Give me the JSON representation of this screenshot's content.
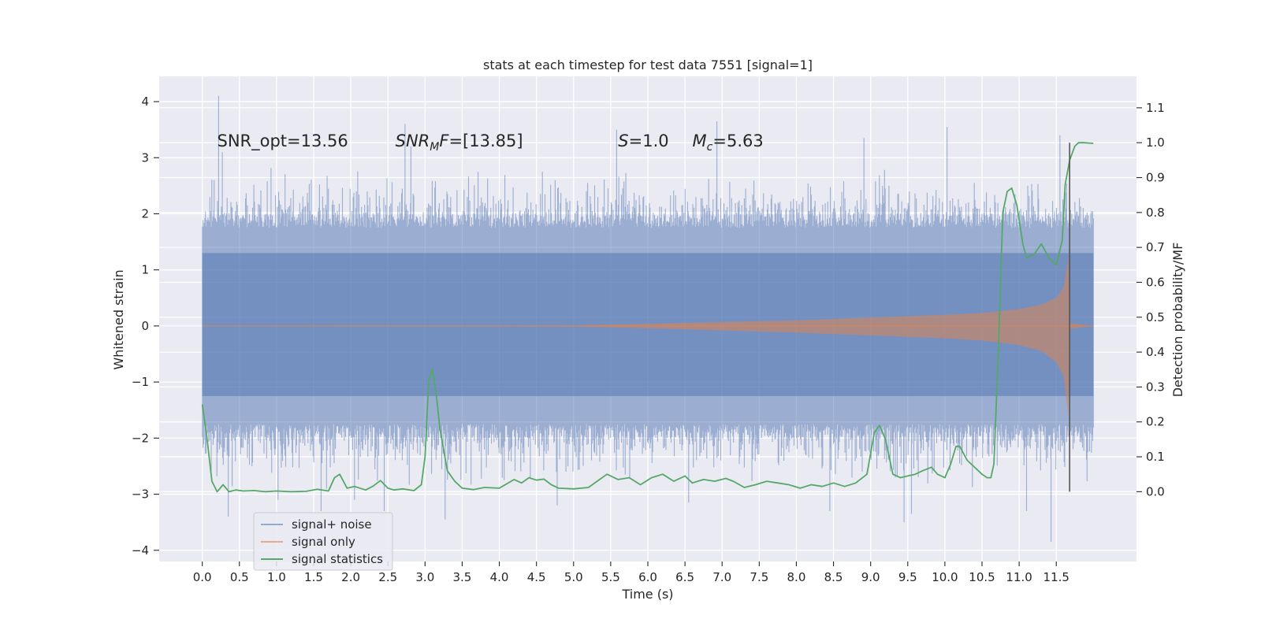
{
  "chart_data": {
    "type": "line",
    "title": "stats at each timestep for test data 7551 [signal=1]",
    "xlabel": "Time (s)",
    "ylabel": "Whitened strain",
    "y2label": "Detection probability/MF",
    "xlim": [
      -0.58,
      12.58
    ],
    "ylim": [
      -4.2,
      4.45
    ],
    "y2lim": [
      -0.2,
      1.19
    ],
    "xticks": [
      0.0,
      0.5,
      1.0,
      1.5,
      2.0,
      2.5,
      3.0,
      3.5,
      4.0,
      4.5,
      5.0,
      5.5,
      6.0,
      6.5,
      7.0,
      7.5,
      8.0,
      8.5,
      9.0,
      9.5,
      10.0,
      10.5,
      11.0,
      11.5
    ],
    "yticks": [
      -4,
      -3,
      -2,
      -1,
      0,
      1,
      2,
      3,
      4
    ],
    "y2ticks": [
      0.0,
      0.1,
      0.2,
      0.3,
      0.4,
      0.5,
      0.6,
      0.7,
      0.8,
      0.9,
      1.0,
      1.1
    ],
    "grid": true,
    "legend_position": "lower-left",
    "colors": {
      "background": "#eaeaf2",
      "noise": "#4c72b0",
      "signal": "#dd8452",
      "stats": "#55a868",
      "marker": "#555555"
    },
    "annotations": [
      {
        "parts": [
          {
            "t": "SNR_opt=13.56",
            "i": false
          }
        ],
        "x": 0.2
      },
      {
        "parts": [
          {
            "t": "SNR",
            "i": true
          },
          {
            "t": "M",
            "i": true,
            "sub": true
          },
          {
            "t": "F",
            "i": true
          },
          {
            "t": "=[13.85]",
            "i": false
          }
        ],
        "x": 2.6
      },
      {
        "parts": [
          {
            "t": "S",
            "i": true
          },
          {
            "t": "=1.0",
            "i": false
          }
        ],
        "x": 5.6
      },
      {
        "parts": [
          {
            "t": "M",
            "i": true
          },
          {
            "t": "c",
            "i": true,
            "sub": true
          },
          {
            "t": "=5.63",
            "i": false
          }
        ],
        "x": 6.6
      }
    ],
    "annotation_y": 3.2,
    "marker_time": 11.68,
    "noise": {
      "t_start": 0.0,
      "t_end": 12.0,
      "band": [
        -1.25,
        1.3
      ],
      "max_upper": 4.1,
      "min_lower": -3.85,
      "peaks": [
        {
          "t": 0.22,
          "v": 4.1
        },
        {
          "t": 0.27,
          "v": 3.1
        },
        {
          "t": 0.16,
          "v": 2.6
        },
        {
          "t": 0.35,
          "v": -3.4
        },
        {
          "t": 1.02,
          "v": -3.1
        },
        {
          "t": 1.6,
          "v": -3.3
        },
        {
          "t": 2.05,
          "v": -3.1
        },
        {
          "t": 2.73,
          "v": 3.6
        },
        {
          "t": 2.81,
          "v": 3.2
        },
        {
          "t": 2.45,
          "v": -3.3
        },
        {
          "t": 3.27,
          "v": -3.45
        },
        {
          "t": 4.78,
          "v": -3.2
        },
        {
          "t": 5.58,
          "v": 3.5
        },
        {
          "t": 6.55,
          "v": -3.15
        },
        {
          "t": 6.93,
          "v": 3.65
        },
        {
          "t": 8.45,
          "v": -3.3
        },
        {
          "t": 8.91,
          "v": 3.35
        },
        {
          "t": 9.45,
          "v": -3.5
        },
        {
          "t": 9.55,
          "v": -3.35
        },
        {
          "t": 10.03,
          "v": 3.55
        },
        {
          "t": 11.43,
          "v": -3.85
        },
        {
          "t": 11.1,
          "v": -3.3
        },
        {
          "t": 11.55,
          "v": 3.4
        }
      ]
    },
    "signal": {
      "t_start": 0.0,
      "t_end": 12.0,
      "envelope": [
        {
          "t": 0.0,
          "upper": 0.0,
          "lower": 0.0
        },
        {
          "t": 4.0,
          "upper": 0.005,
          "lower": -0.005
        },
        {
          "t": 5.0,
          "upper": 0.01,
          "lower": -0.01
        },
        {
          "t": 6.0,
          "upper": 0.04,
          "lower": -0.04
        },
        {
          "t": 7.0,
          "upper": 0.07,
          "lower": -0.08
        },
        {
          "t": 8.0,
          "upper": 0.1,
          "lower": -0.12
        },
        {
          "t": 9.0,
          "upper": 0.15,
          "lower": -0.17
        },
        {
          "t": 10.0,
          "upper": 0.2,
          "lower": -0.22
        },
        {
          "t": 10.5,
          "upper": 0.23,
          "lower": -0.26
        },
        {
          "t": 11.0,
          "upper": 0.3,
          "lower": -0.34
        },
        {
          "t": 11.3,
          "upper": 0.38,
          "lower": -0.45
        },
        {
          "t": 11.5,
          "upper": 0.5,
          "lower": -0.65
        },
        {
          "t": 11.6,
          "upper": 0.7,
          "lower": -0.9
        },
        {
          "t": 11.66,
          "upper": 1.25,
          "lower": -1.6
        },
        {
          "t": 11.68,
          "upper": 0.05,
          "lower": -0.05
        },
        {
          "t": 12.0,
          "upper": 0.0,
          "lower": 0.0
        }
      ]
    },
    "series": [
      {
        "name": "signal statistics",
        "axis": "right",
        "x": [
          0.0,
          0.06,
          0.13,
          0.2,
          0.28,
          0.36,
          0.45,
          0.55,
          0.7,
          0.85,
          1.0,
          1.2,
          1.4,
          1.55,
          1.7,
          1.78,
          1.85,
          1.95,
          2.05,
          2.2,
          2.3,
          2.4,
          2.5,
          2.58,
          2.7,
          2.85,
          2.95,
          3.0,
          3.05,
          3.1,
          3.15,
          3.2,
          3.3,
          3.4,
          3.5,
          3.65,
          3.8,
          4.0,
          4.2,
          4.3,
          4.4,
          4.5,
          4.6,
          4.7,
          4.8,
          5.0,
          5.2,
          5.35,
          5.45,
          5.6,
          5.75,
          5.9,
          6.05,
          6.2,
          6.35,
          6.5,
          6.6,
          6.75,
          6.9,
          7.05,
          7.15,
          7.3,
          7.45,
          7.6,
          7.75,
          7.9,
          8.05,
          8.2,
          8.35,
          8.5,
          8.65,
          8.8,
          8.95,
          9.05,
          9.12,
          9.2,
          9.3,
          9.4,
          9.5,
          9.6,
          9.7,
          9.82,
          9.9,
          10.0,
          10.08,
          10.15,
          10.2,
          10.3,
          10.4,
          10.5,
          10.57,
          10.62,
          10.66,
          10.72,
          10.78,
          10.84,
          10.9,
          10.97,
          11.05,
          11.1,
          11.2,
          11.3,
          11.4,
          11.5,
          11.58,
          11.62,
          11.68,
          11.75,
          11.8,
          11.87,
          11.93,
          12.0
        ],
        "values": [
          0.25,
          0.16,
          0.03,
          0.0,
          0.02,
          0.0,
          0.005,
          0.002,
          0.003,
          0.0,
          0.002,
          0.0,
          0.001,
          0.007,
          0.002,
          0.04,
          0.05,
          0.01,
          0.015,
          0.005,
          0.016,
          0.032,
          0.01,
          0.005,
          0.008,
          0.003,
          0.02,
          0.1,
          0.32,
          0.35,
          0.28,
          0.18,
          0.06,
          0.03,
          0.01,
          0.006,
          0.012,
          0.01,
          0.035,
          0.025,
          0.04,
          0.033,
          0.036,
          0.02,
          0.01,
          0.008,
          0.012,
          0.035,
          0.05,
          0.035,
          0.04,
          0.02,
          0.04,
          0.05,
          0.03,
          0.045,
          0.025,
          0.035,
          0.03,
          0.038,
          0.03,
          0.012,
          0.02,
          0.03,
          0.025,
          0.02,
          0.01,
          0.02,
          0.015,
          0.025,
          0.015,
          0.025,
          0.05,
          0.17,
          0.19,
          0.15,
          0.05,
          0.04,
          0.045,
          0.05,
          0.06,
          0.07,
          0.05,
          0.04,
          0.08,
          0.13,
          0.13,
          0.09,
          0.07,
          0.05,
          0.04,
          0.04,
          0.08,
          0.4,
          0.8,
          0.86,
          0.87,
          0.82,
          0.71,
          0.67,
          0.68,
          0.71,
          0.67,
          0.65,
          0.72,
          0.88,
          0.95,
          0.99,
          1.0,
          1.0,
          0.999,
          0.998
        ]
      }
    ],
    "legend": [
      {
        "label": "signal+ noise",
        "kind": "noise"
      },
      {
        "label": "signal only",
        "kind": "signal"
      },
      {
        "label": "signal statistics",
        "kind": "stats"
      }
    ]
  }
}
